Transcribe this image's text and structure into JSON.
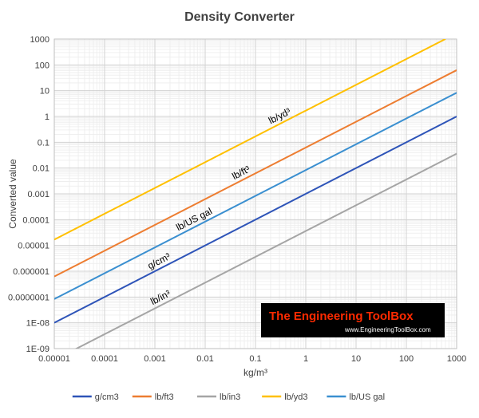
{
  "chart_data": {
    "type": "line",
    "title": "Density Converter",
    "xlabel": "kg/m³",
    "ylabel": "Converted value",
    "x_scale": "log",
    "y_scale": "log",
    "xlim": [
      1e-05,
      1000
    ],
    "ylim": [
      1e-09,
      1000
    ],
    "x_ticks": [
      "0.00001",
      "0.0001",
      "0.001",
      "0.01",
      "0.1",
      "1",
      "10",
      "100",
      "1000"
    ],
    "y_ticks": [
      "1E-09",
      "1E-08",
      "0.0000001",
      "0.000001",
      "0.00001",
      "0.0001",
      "0.001",
      "0.01",
      "0.1",
      "1",
      "10",
      "100",
      "1000"
    ],
    "grid": true,
    "legend_position": "bottom",
    "series": [
      {
        "name": "g/cm3",
        "color": "#2e54b8",
        "x": [
          1e-05,
          1000
        ],
        "y": [
          1e-08,
          1
        ]
      },
      {
        "name": "lb/ft3",
        "color": "#ed7d31",
        "x": [
          1e-05,
          1000
        ],
        "y": [
          6.243e-07,
          62.43
        ]
      },
      {
        "name": "lb/in3",
        "color": "#a5a5a5",
        "x": [
          1e-05,
          1000
        ],
        "y": [
          3.613e-10,
          0.03613
        ]
      },
      {
        "name": "lb/yd3",
        "color": "#ffc000",
        "x": [
          1e-05,
          600
        ],
        "y": [
          1.6856e-05,
          1011.4
        ]
      },
      {
        "name": "lb/US gal",
        "color": "#3a8fd0",
        "x": [
          1e-05,
          1000
        ],
        "y": [
          8.345e-08,
          8.345
        ]
      }
    ],
    "annotations": [
      {
        "text": "lb/yd³",
        "series": "lb/yd3",
        "at_x": 0.35
      },
      {
        "text": "lb/ft³",
        "series": "lb/ft3",
        "at_x": 0.06
      },
      {
        "text": "lb/US gal",
        "series": "lb/US gal",
        "at_x": 0.007
      },
      {
        "text": "g/cm³",
        "series": "g/cm3",
        "at_x": 0.0014
      },
      {
        "text": "lb/in³",
        "series": "lb/in3",
        "at_x": 0.0015
      }
    ]
  },
  "logo": {
    "title": "The Engineering ToolBox",
    "url": "www.EngineeringToolBox.com",
    "bg_color": "#000000",
    "title_color": "#ff2a00",
    "url_color": "#ffffff"
  }
}
